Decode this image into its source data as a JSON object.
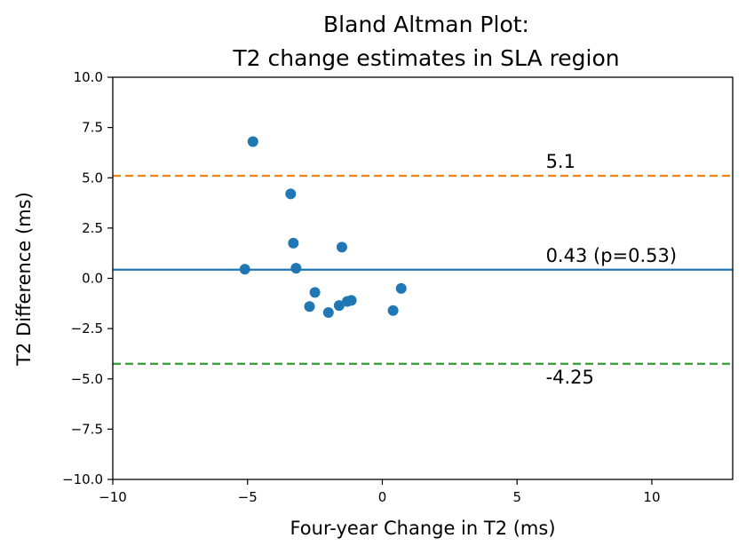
{
  "chart_data": {
    "type": "scatter",
    "title_lines": [
      "Bland Altman Plot:",
      "T2 change estimates in SLA region"
    ],
    "xlabel": "Four-year Change in T2 (ms)",
    "ylabel": "T2 Difference (ms)",
    "xlim": [
      -10,
      13
    ],
    "ylim": [
      -10,
      10
    ],
    "xticks": [
      -10,
      -5,
      0,
      5,
      10
    ],
    "xtick_labels": [
      "−10",
      "−5",
      "0",
      "5",
      "10"
    ],
    "yticks": [
      -10,
      -7.5,
      -5,
      -2.5,
      0,
      2.5,
      5,
      7.5,
      10
    ],
    "ytick_labels": [
      "−10.0",
      "−7.5",
      "−5.0",
      "−2.5",
      "0.0",
      "2.5",
      "5.0",
      "7.5",
      "10.0"
    ],
    "grid": false,
    "point_color": "#1f77b4",
    "points": [
      {
        "x": -4.8,
        "y": 6.8
      },
      {
        "x": -3.4,
        "y": 4.2
      },
      {
        "x": -3.3,
        "y": 1.75
      },
      {
        "x": -1.5,
        "y": 1.55
      },
      {
        "x": -5.1,
        "y": 0.45
      },
      {
        "x": -3.2,
        "y": 0.5
      },
      {
        "x": -2.5,
        "y": -0.7
      },
      {
        "x": -2.7,
        "y": -1.4
      },
      {
        "x": -2.0,
        "y": -1.7
      },
      {
        "x": -1.6,
        "y": -1.35
      },
      {
        "x": -1.3,
        "y": -1.15
      },
      {
        "x": -1.15,
        "y": -1.1
      },
      {
        "x": 0.4,
        "y": -1.6
      },
      {
        "x": 0.7,
        "y": -0.5
      }
    ],
    "reference_lines": [
      {
        "name": "mean",
        "y": 0.43,
        "label": "0.43 (p=0.53)",
        "color": "#1f77b4",
        "style": "solid",
        "label_x": 6
      },
      {
        "name": "upper-limit",
        "y": 5.1,
        "label": "5.1",
        "color": "#ff7f0e",
        "style": "dashed",
        "label_x": 6
      },
      {
        "name": "lower-limit",
        "y": -4.25,
        "label": "-4.25",
        "color": "#2ca02c",
        "style": "dashed",
        "label_x": 6
      }
    ]
  }
}
